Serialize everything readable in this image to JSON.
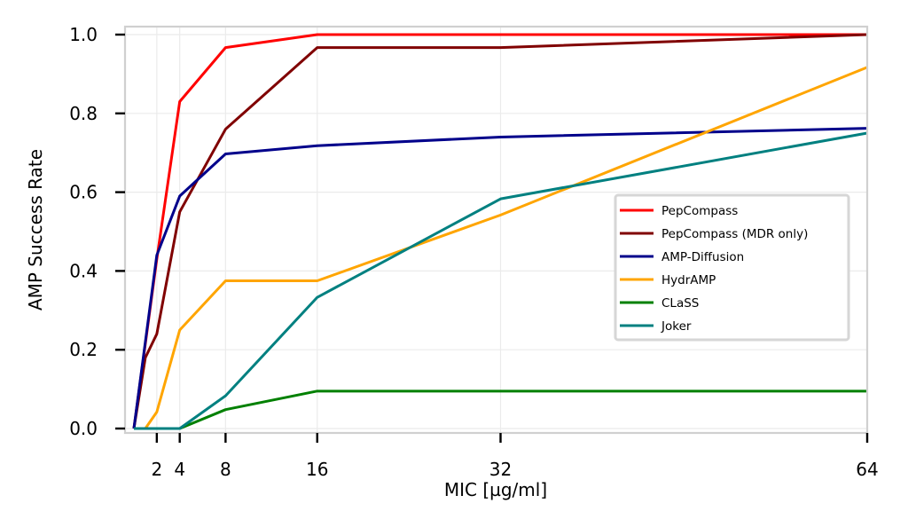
{
  "chart_data": {
    "type": "line",
    "title": "",
    "xlabel": "MIC [µg/ml]",
    "ylabel": "AMP Success Rate",
    "xlim": [
      -1,
      64
    ],
    "ylim": [
      0,
      1.0
    ],
    "xticks": [
      2,
      4,
      8,
      16,
      32,
      64
    ],
    "xtick_labels": [
      "2",
      "4",
      "8",
      "16",
      "32",
      "64"
    ],
    "yticks": [
      0.0,
      0.2,
      0.4,
      0.6,
      0.8,
      1.0
    ],
    "ytick_labels": [
      "0.0",
      "0.2",
      "0.4",
      "0.6",
      "0.8",
      "1.0"
    ],
    "grid": true,
    "legend_position": "center-right",
    "series": [
      {
        "name": "PepCompass",
        "color": "#ff0000",
        "points": [
          [
            0,
            0
          ],
          [
            2,
            0.43
          ],
          [
            4,
            0.83
          ],
          [
            8,
            0.967
          ],
          [
            16,
            1.0
          ],
          [
            32,
            1.0
          ],
          [
            64,
            1.0
          ]
        ]
      },
      {
        "name": "PepCompass (MDR only)",
        "color": "#800000",
        "points": [
          [
            0,
            0
          ],
          [
            1,
            0.18
          ],
          [
            2,
            0.24
          ],
          [
            4,
            0.55
          ],
          [
            8,
            0.76
          ],
          [
            16,
            0.967
          ],
          [
            32,
            0.967
          ],
          [
            64,
            1.0
          ]
        ]
      },
      {
        "name": "AMP-Diffusion",
        "color": "#00008b",
        "points": [
          [
            0,
            0
          ],
          [
            2,
            0.44
          ],
          [
            4,
            0.59
          ],
          [
            8,
            0.697
          ],
          [
            16,
            0.718
          ],
          [
            32,
            0.74
          ],
          [
            64,
            0.762
          ]
        ]
      },
      {
        "name": "HydrAMP",
        "color": "#ffa500",
        "points": [
          [
            0,
            0
          ],
          [
            1,
            0
          ],
          [
            2,
            0.042
          ],
          [
            4,
            0.25
          ],
          [
            8,
            0.375
          ],
          [
            16,
            0.375
          ],
          [
            32,
            0.542
          ],
          [
            64,
            0.917
          ]
        ]
      },
      {
        "name": "CLaSS",
        "color": "#008000",
        "points": [
          [
            0,
            0
          ],
          [
            2,
            0
          ],
          [
            4,
            0
          ],
          [
            8,
            0.048
          ],
          [
            16,
            0.095
          ],
          [
            32,
            0.095
          ],
          [
            64,
            0.095
          ]
        ]
      },
      {
        "name": "Joker",
        "color": "#008080",
        "points": [
          [
            0,
            0
          ],
          [
            2,
            0
          ],
          [
            4,
            0
          ],
          [
            8,
            0.083
          ],
          [
            16,
            0.333
          ],
          [
            32,
            0.583
          ],
          [
            64,
            0.75
          ]
        ]
      }
    ]
  }
}
